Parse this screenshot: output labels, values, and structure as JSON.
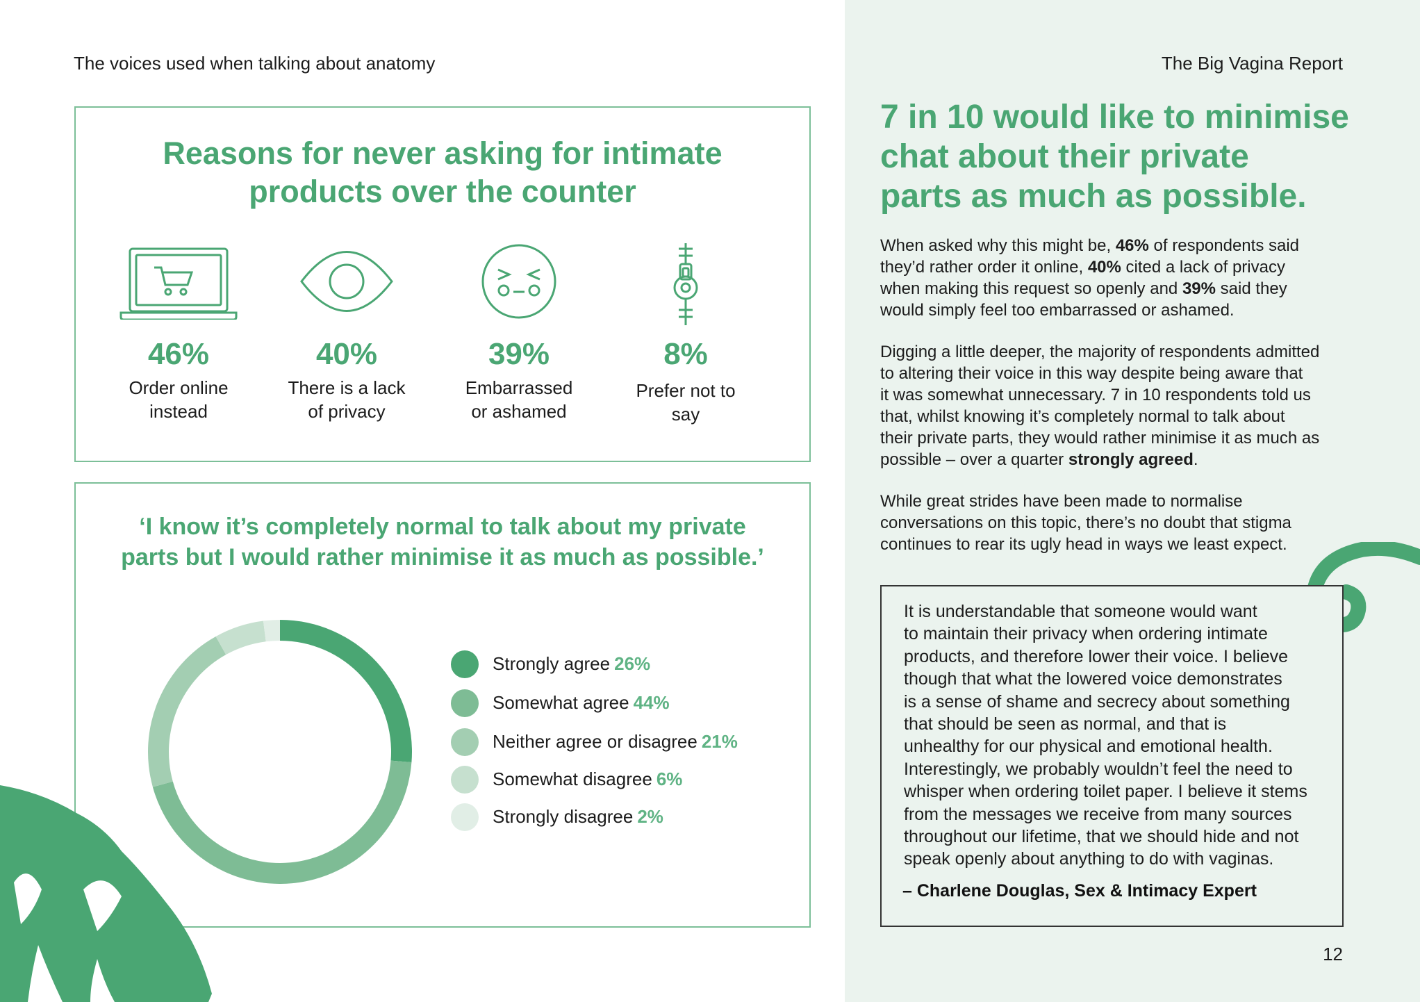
{
  "header": {
    "left": "The voices used when talking about anatomy",
    "right": "The Big Vagina Report"
  },
  "reasons_box": {
    "title_lines": [
      "Reasons for never asking for intimate",
      "products over the counter"
    ],
    "items": [
      {
        "icon": "laptop-cart-icon",
        "percent": "46%",
        "label_lines": [
          "Order online",
          "instead"
        ]
      },
      {
        "icon": "eye-icon",
        "percent": "40%",
        "label_lines": [
          "There is a lack",
          "of privacy"
        ]
      },
      {
        "icon": "embarrassed-face-icon",
        "percent": "39%",
        "label_lines": [
          "Embarrassed",
          "or ashamed"
        ]
      },
      {
        "icon": "zipped-mouth-icon",
        "percent": "8%",
        "label_lines": [
          "Prefer not to",
          "say"
        ]
      }
    ]
  },
  "quote_chart_box": {
    "title_lines": [
      "‘I know it’s completely normal to talk about my private",
      "parts but I would rather minimise it as much as possible.’"
    ],
    "legend": [
      {
        "label": "Strongly agree",
        "value": "26%"
      },
      {
        "label": "Somewhat agree",
        "value": "44%"
      },
      {
        "label": "Neither agree or disagree",
        "value": "21%"
      },
      {
        "label": "Somewhat disagree",
        "value": "6%"
      },
      {
        "label": "Strongly disagree",
        "value": "2%"
      }
    ]
  },
  "colors": {
    "brand_green": "#4aa673",
    "strongly_agree": "#4aa673",
    "somewhat_agree": "#7ebc95",
    "neither": "#a3ceb2",
    "somewhat_disagree": "#c6e0cf",
    "strongly_disagree": "#e1eee6",
    "panel_bg": "#ebf3ee"
  },
  "chart_data": {
    "type": "pie",
    "title": "‘I know it’s completely normal to talk about my private parts but I would rather minimise it as much as possible.’",
    "categories": [
      "Strongly agree",
      "Somewhat agree",
      "Neither agree or disagree",
      "Somewhat disagree",
      "Strongly disagree"
    ],
    "values": [
      26,
      44,
      21,
      6,
      2
    ],
    "donut": true,
    "legend": "right"
  },
  "right_column": {
    "headline_lines": [
      "7 in 10 would like to minimise",
      "chat about their private",
      "parts as much as possible."
    ],
    "para1": [
      [
        {
          "t": "When asked why this might be, "
        },
        {
          "t": "46%",
          "b": true
        },
        {
          "t": " of respondents said"
        }
      ],
      [
        {
          "t": "they’d rather order it online, "
        },
        {
          "t": "40%",
          "b": true
        },
        {
          "t": " cited a lack of privacy"
        }
      ],
      [
        {
          "t": "when making this request so openly and "
        },
        {
          "t": "39%",
          "b": true
        },
        {
          "t": " said they"
        }
      ],
      [
        {
          "t": "would simply feel too embarrassed or ashamed."
        }
      ]
    ],
    "para2": [
      [
        {
          "t": "Digging a little deeper, the majority of respondents admitted"
        }
      ],
      [
        {
          "t": "to altering their voice in this way despite being aware that"
        }
      ],
      [
        {
          "t": "it was somewhat unnecessary. 7 in 10 respondents told us"
        }
      ],
      [
        {
          "t": "that, whilst knowing it’s completely normal to talk about"
        }
      ],
      [
        {
          "t": "their private parts, they would rather minimise it as much as"
        }
      ],
      [
        {
          "t": "possible – over a quarter "
        },
        {
          "t": "strongly agreed",
          "b": true
        },
        {
          "t": "."
        }
      ]
    ],
    "para3": [
      [
        {
          "t": "While great strides have been made to normalise"
        }
      ],
      [
        {
          "t": "conversations on this topic, there’s no doubt that stigma"
        }
      ],
      [
        {
          "t": "continues to rear its ugly head in ways we least expect."
        }
      ]
    ],
    "quote_lines": [
      "It is understandable that someone would want",
      "to maintain their privacy when ordering intimate",
      "products, and therefore lower their voice. I believe",
      "though that what the lowered voice demonstrates",
      "is a sense of shame and secrecy about something",
      "that should be seen as normal, and that is",
      "unhealthy for our physical and emotional health.",
      "Interestingly, we probably wouldn’t feel the need to",
      "whisper when ordering toilet paper. I believe it stems",
      "from the messages we receive from many sources",
      "throughout our lifetime, that we should hide and not",
      "speak openly about anything to do with vaginas."
    ],
    "quote_attribution": "– Charlene Douglas, Sex & Intimacy Expert"
  },
  "page_number": "12"
}
